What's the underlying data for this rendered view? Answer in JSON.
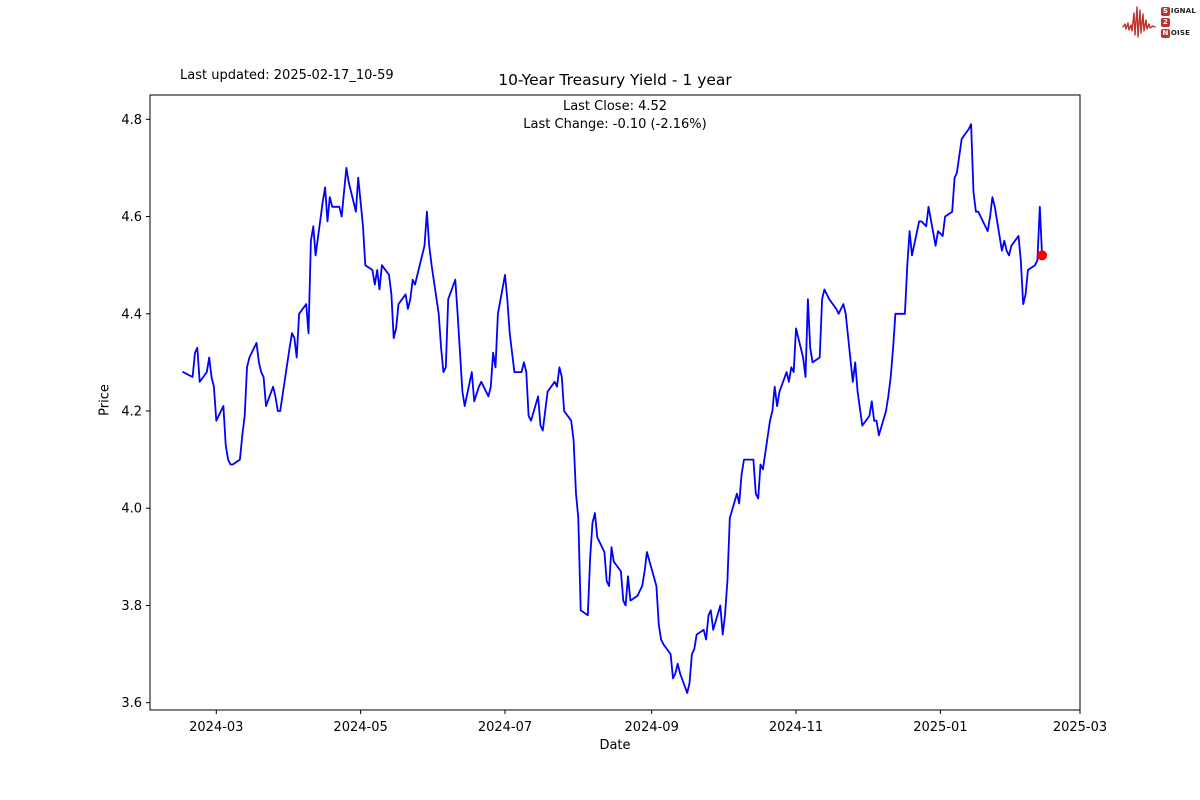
{
  "header": {
    "last_updated": "Last updated: 2025-02-17_10-59",
    "title": "10-Year Treasury Yield - 1 year",
    "subtitle_close": "Last Close: 4.52",
    "subtitle_change": "Last Change: -0.10 (-2.16%)"
  },
  "logo": {
    "color": "#c0342e",
    "line1_badge": "S",
    "line1_rest": "IGNAL",
    "line2_badge": "2",
    "line2_rest": "",
    "line3_badge": "N",
    "line3_rest": "OISE"
  },
  "chart_data": {
    "type": "line",
    "title": "10-Year Treasury Yield - 1 year",
    "xlabel": "Date",
    "ylabel": "Price",
    "legend": "none",
    "grid": false,
    "line_color": "#0000ff",
    "marker_color": "#ff0000",
    "last_close": 4.52,
    "last_change": "-0.10 (-2.16%)",
    "x_range": [
      "2024-02-02",
      "2025-03-01"
    ],
    "y_range": [
      3.585,
      4.85
    ],
    "y_ticks": [
      {
        "value": 3.6,
        "label": "3.6"
      },
      {
        "value": 3.8,
        "label": "3.8"
      },
      {
        "value": 4.0,
        "label": "4.0"
      },
      {
        "value": 4.2,
        "label": "4.2"
      },
      {
        "value": 4.4,
        "label": "4.4"
      },
      {
        "value": 4.6,
        "label": "4.6"
      },
      {
        "value": 4.8,
        "label": "4.8"
      }
    ],
    "x_ticks": [
      {
        "date": "2024-03-01",
        "label": "2024-03"
      },
      {
        "date": "2024-05-01",
        "label": "2024-05"
      },
      {
        "date": "2024-07-01",
        "label": "2024-07"
      },
      {
        "date": "2024-09-01",
        "label": "2024-09"
      },
      {
        "date": "2024-11-01",
        "label": "2024-11"
      },
      {
        "date": "2025-01-01",
        "label": "2025-01"
      },
      {
        "date": "2025-03-01",
        "label": "2025-03"
      }
    ],
    "series": [
      {
        "name": "10-Year Treasury Yield",
        "points": [
          [
            "2024-02-16",
            4.28
          ],
          [
            "2024-02-20",
            4.27
          ],
          [
            "2024-02-21",
            4.32
          ],
          [
            "2024-02-22",
            4.33
          ],
          [
            "2024-02-23",
            4.26
          ],
          [
            "2024-02-26",
            4.28
          ],
          [
            "2024-02-27",
            4.31
          ],
          [
            "2024-02-28",
            4.27
          ],
          [
            "2024-02-29",
            4.25
          ],
          [
            "2024-03-01",
            4.18
          ],
          [
            "2024-03-04",
            4.21
          ],
          [
            "2024-03-05",
            4.13
          ],
          [
            "2024-03-06",
            4.1
          ],
          [
            "2024-03-07",
            4.09
          ],
          [
            "2024-03-08",
            4.09
          ],
          [
            "2024-03-11",
            4.1
          ],
          [
            "2024-03-12",
            4.15
          ],
          [
            "2024-03-13",
            4.19
          ],
          [
            "2024-03-14",
            4.29
          ],
          [
            "2024-03-15",
            4.31
          ],
          [
            "2024-03-18",
            4.34
          ],
          [
            "2024-03-19",
            4.3
          ],
          [
            "2024-03-20",
            4.28
          ],
          [
            "2024-03-21",
            4.27
          ],
          [
            "2024-03-22",
            4.21
          ],
          [
            "2024-03-25",
            4.25
          ],
          [
            "2024-03-26",
            4.23
          ],
          [
            "2024-03-27",
            4.2
          ],
          [
            "2024-03-28",
            4.2
          ],
          [
            "2024-04-01",
            4.33
          ],
          [
            "2024-04-02",
            4.36
          ],
          [
            "2024-04-03",
            4.35
          ],
          [
            "2024-04-04",
            4.31
          ],
          [
            "2024-04-05",
            4.4
          ],
          [
            "2024-04-08",
            4.42
          ],
          [
            "2024-04-09",
            4.36
          ],
          [
            "2024-04-10",
            4.55
          ],
          [
            "2024-04-11",
            4.58
          ],
          [
            "2024-04-12",
            4.52
          ],
          [
            "2024-04-15",
            4.63
          ],
          [
            "2024-04-16",
            4.66
          ],
          [
            "2024-04-17",
            4.59
          ],
          [
            "2024-04-18",
            4.64
          ],
          [
            "2024-04-19",
            4.62
          ],
          [
            "2024-04-22",
            4.62
          ],
          [
            "2024-04-23",
            4.6
          ],
          [
            "2024-04-24",
            4.65
          ],
          [
            "2024-04-25",
            4.7
          ],
          [
            "2024-04-26",
            4.67
          ],
          [
            "2024-04-29",
            4.61
          ],
          [
            "2024-04-30",
            4.68
          ],
          [
            "2024-05-01",
            4.63
          ],
          [
            "2024-05-02",
            4.58
          ],
          [
            "2024-05-03",
            4.5
          ],
          [
            "2024-05-06",
            4.49
          ],
          [
            "2024-05-07",
            4.46
          ],
          [
            "2024-05-08",
            4.49
          ],
          [
            "2024-05-09",
            4.45
          ],
          [
            "2024-05-10",
            4.5
          ],
          [
            "2024-05-13",
            4.48
          ],
          [
            "2024-05-14",
            4.44
          ],
          [
            "2024-05-15",
            4.35
          ],
          [
            "2024-05-16",
            4.37
          ],
          [
            "2024-05-17",
            4.42
          ],
          [
            "2024-05-20",
            4.44
          ],
          [
            "2024-05-21",
            4.41
          ],
          [
            "2024-05-22",
            4.43
          ],
          [
            "2024-05-23",
            4.47
          ],
          [
            "2024-05-24",
            4.46
          ],
          [
            "2024-05-28",
            4.54
          ],
          [
            "2024-05-29",
            4.61
          ],
          [
            "2024-05-30",
            4.54
          ],
          [
            "2024-05-31",
            4.5
          ],
          [
            "2024-06-03",
            4.4
          ],
          [
            "2024-06-04",
            4.33
          ],
          [
            "2024-06-05",
            4.28
          ],
          [
            "2024-06-06",
            4.29
          ],
          [
            "2024-06-07",
            4.43
          ],
          [
            "2024-06-10",
            4.47
          ],
          [
            "2024-06-11",
            4.4
          ],
          [
            "2024-06-12",
            4.32
          ],
          [
            "2024-06-13",
            4.24
          ],
          [
            "2024-06-14",
            4.21
          ],
          [
            "2024-06-17",
            4.28
          ],
          [
            "2024-06-18",
            4.22
          ],
          [
            "2024-06-20",
            4.25
          ],
          [
            "2024-06-21",
            4.26
          ],
          [
            "2024-06-24",
            4.23
          ],
          [
            "2024-06-25",
            4.25
          ],
          [
            "2024-06-26",
            4.32
          ],
          [
            "2024-06-27",
            4.29
          ],
          [
            "2024-06-28",
            4.4
          ],
          [
            "2024-07-01",
            4.48
          ],
          [
            "2024-07-02",
            4.43
          ],
          [
            "2024-07-03",
            4.36
          ],
          [
            "2024-07-05",
            4.28
          ],
          [
            "2024-07-08",
            4.28
          ],
          [
            "2024-07-09",
            4.3
          ],
          [
            "2024-07-10",
            4.28
          ],
          [
            "2024-07-11",
            4.19
          ],
          [
            "2024-07-12",
            4.18
          ],
          [
            "2024-07-15",
            4.23
          ],
          [
            "2024-07-16",
            4.17
          ],
          [
            "2024-07-17",
            4.16
          ],
          [
            "2024-07-18",
            4.2
          ],
          [
            "2024-07-19",
            4.24
          ],
          [
            "2024-07-22",
            4.26
          ],
          [
            "2024-07-23",
            4.25
          ],
          [
            "2024-07-24",
            4.29
          ],
          [
            "2024-07-25",
            4.27
          ],
          [
            "2024-07-26",
            4.2
          ],
          [
            "2024-07-29",
            4.18
          ],
          [
            "2024-07-30",
            4.14
          ],
          [
            "2024-07-31",
            4.03
          ],
          [
            "2024-08-01",
            3.98
          ],
          [
            "2024-08-02",
            3.79
          ],
          [
            "2024-08-05",
            3.78
          ],
          [
            "2024-08-06",
            3.9
          ],
          [
            "2024-08-07",
            3.97
          ],
          [
            "2024-08-08",
            3.99
          ],
          [
            "2024-08-09",
            3.94
          ],
          [
            "2024-08-12",
            3.91
          ],
          [
            "2024-08-13",
            3.85
          ],
          [
            "2024-08-14",
            3.84
          ],
          [
            "2024-08-15",
            3.92
          ],
          [
            "2024-08-16",
            3.89
          ],
          [
            "2024-08-19",
            3.87
          ],
          [
            "2024-08-20",
            3.81
          ],
          [
            "2024-08-21",
            3.8
          ],
          [
            "2024-08-22",
            3.86
          ],
          [
            "2024-08-23",
            3.81
          ],
          [
            "2024-08-26",
            3.82
          ],
          [
            "2024-08-27",
            3.83
          ],
          [
            "2024-08-28",
            3.84
          ],
          [
            "2024-08-29",
            3.87
          ],
          [
            "2024-08-30",
            3.91
          ],
          [
            "2024-09-03",
            3.84
          ],
          [
            "2024-09-04",
            3.76
          ],
          [
            "2024-09-05",
            3.73
          ],
          [
            "2024-09-06",
            3.72
          ],
          [
            "2024-09-09",
            3.7
          ],
          [
            "2024-09-10",
            3.65
          ],
          [
            "2024-09-11",
            3.66
          ],
          [
            "2024-09-12",
            3.68
          ],
          [
            "2024-09-13",
            3.66
          ],
          [
            "2024-09-16",
            3.62
          ],
          [
            "2024-09-17",
            3.64
          ],
          [
            "2024-09-18",
            3.7
          ],
          [
            "2024-09-19",
            3.71
          ],
          [
            "2024-09-20",
            3.74
          ],
          [
            "2024-09-23",
            3.75
          ],
          [
            "2024-09-24",
            3.73
          ],
          [
            "2024-09-25",
            3.78
          ],
          [
            "2024-09-26",
            3.79
          ],
          [
            "2024-09-27",
            3.75
          ],
          [
            "2024-09-30",
            3.8
          ],
          [
            "2024-10-01",
            3.74
          ],
          [
            "2024-10-02",
            3.78
          ],
          [
            "2024-10-03",
            3.85
          ],
          [
            "2024-10-04",
            3.98
          ],
          [
            "2024-10-07",
            4.03
          ],
          [
            "2024-10-08",
            4.01
          ],
          [
            "2024-10-09",
            4.07
          ],
          [
            "2024-10-10",
            4.1
          ],
          [
            "2024-10-11",
            4.1
          ],
          [
            "2024-10-14",
            4.1
          ],
          [
            "2024-10-15",
            4.03
          ],
          [
            "2024-10-16",
            4.02
          ],
          [
            "2024-10-17",
            4.09
          ],
          [
            "2024-10-18",
            4.08
          ],
          [
            "2024-10-21",
            4.18
          ],
          [
            "2024-10-22",
            4.2
          ],
          [
            "2024-10-23",
            4.25
          ],
          [
            "2024-10-24",
            4.21
          ],
          [
            "2024-10-25",
            4.24
          ],
          [
            "2024-10-28",
            4.28
          ],
          [
            "2024-10-29",
            4.26
          ],
          [
            "2024-10-30",
            4.29
          ],
          [
            "2024-10-31",
            4.28
          ],
          [
            "2024-11-01",
            4.37
          ],
          [
            "2024-11-04",
            4.31
          ],
          [
            "2024-11-05",
            4.27
          ],
          [
            "2024-11-06",
            4.43
          ],
          [
            "2024-11-07",
            4.33
          ],
          [
            "2024-11-08",
            4.3
          ],
          [
            "2024-11-11",
            4.31
          ],
          [
            "2024-11-12",
            4.43
          ],
          [
            "2024-11-13",
            4.45
          ],
          [
            "2024-11-14",
            4.44
          ],
          [
            "2024-11-15",
            4.43
          ],
          [
            "2024-11-18",
            4.41
          ],
          [
            "2024-11-19",
            4.4
          ],
          [
            "2024-11-20",
            4.41
          ],
          [
            "2024-11-21",
            4.42
          ],
          [
            "2024-11-22",
            4.4
          ],
          [
            "2024-11-25",
            4.26
          ],
          [
            "2024-11-26",
            4.3
          ],
          [
            "2024-11-27",
            4.24
          ],
          [
            "2024-11-29",
            4.17
          ],
          [
            "2024-12-02",
            4.19
          ],
          [
            "2024-12-03",
            4.22
          ],
          [
            "2024-12-04",
            4.18
          ],
          [
            "2024-12-05",
            4.18
          ],
          [
            "2024-12-06",
            4.15
          ],
          [
            "2024-12-09",
            4.2
          ],
          [
            "2024-12-10",
            4.23
          ],
          [
            "2024-12-11",
            4.27
          ],
          [
            "2024-12-12",
            4.33
          ],
          [
            "2024-12-13",
            4.4
          ],
          [
            "2024-12-16",
            4.4
          ],
          [
            "2024-12-17",
            4.4
          ],
          [
            "2024-12-18",
            4.5
          ],
          [
            "2024-12-19",
            4.57
          ],
          [
            "2024-12-20",
            4.52
          ],
          [
            "2024-12-23",
            4.59
          ],
          [
            "2024-12-24",
            4.59
          ],
          [
            "2024-12-26",
            4.58
          ],
          [
            "2024-12-27",
            4.62
          ],
          [
            "2024-12-30",
            4.54
          ],
          [
            "2024-12-31",
            4.57
          ],
          [
            "2025-01-02",
            4.56
          ],
          [
            "2025-01-03",
            4.6
          ],
          [
            "2025-01-06",
            4.61
          ],
          [
            "2025-01-07",
            4.68
          ],
          [
            "2025-01-08",
            4.69
          ],
          [
            "2025-01-10",
            4.76
          ],
          [
            "2025-01-13",
            4.78
          ],
          [
            "2025-01-14",
            4.79
          ],
          [
            "2025-01-15",
            4.65
          ],
          [
            "2025-01-16",
            4.61
          ],
          [
            "2025-01-17",
            4.61
          ],
          [
            "2025-01-21",
            4.57
          ],
          [
            "2025-01-22",
            4.6
          ],
          [
            "2025-01-23",
            4.64
          ],
          [
            "2025-01-24",
            4.62
          ],
          [
            "2025-01-27",
            4.53
          ],
          [
            "2025-01-28",
            4.55
          ],
          [
            "2025-01-29",
            4.53
          ],
          [
            "2025-01-30",
            4.52
          ],
          [
            "2025-01-31",
            4.54
          ],
          [
            "2025-02-03",
            4.56
          ],
          [
            "2025-02-04",
            4.51
          ],
          [
            "2025-02-05",
            4.42
          ],
          [
            "2025-02-06",
            4.44
          ],
          [
            "2025-02-07",
            4.49
          ],
          [
            "2025-02-10",
            4.5
          ],
          [
            "2025-02-11",
            4.51
          ],
          [
            "2025-02-12",
            4.62
          ],
          [
            "2025-02-13",
            4.52
          ]
        ]
      }
    ]
  }
}
